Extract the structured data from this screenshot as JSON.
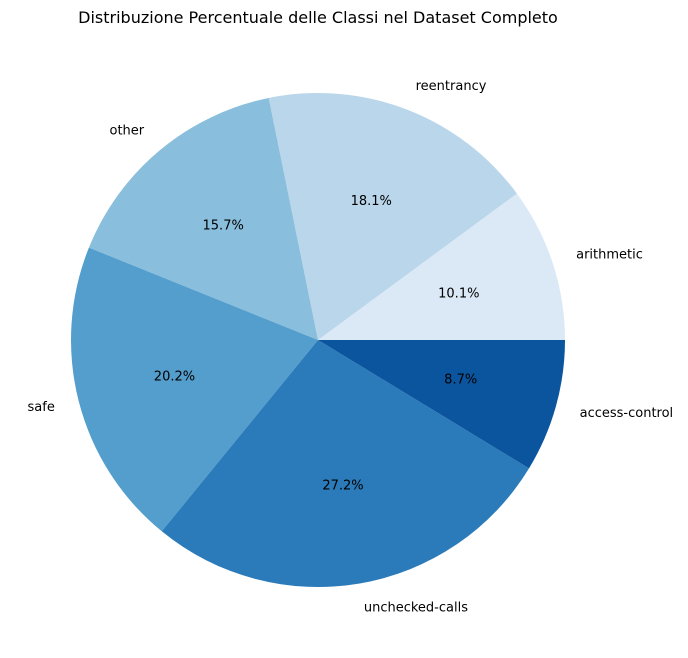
{
  "chart_data": {
    "type": "pie",
    "title": "Distribuzione Percentuale delle Classi nel Dataset Completo",
    "start_angle_deg": 0,
    "direction": "counterclockwise",
    "slices": [
      {
        "label": "arithmetic",
        "value": 10.1,
        "pct_label": "10.1%",
        "color": "#dbe9f6"
      },
      {
        "label": "reentrancy",
        "value": 18.1,
        "pct_label": "18.1%",
        "color": "#bad6eb"
      },
      {
        "label": "other",
        "value": 15.7,
        "pct_label": "15.7%",
        "color": "#89bedc"
      },
      {
        "label": "safe",
        "value": 20.2,
        "pct_label": "20.2%",
        "color": "#539ecd"
      },
      {
        "label": "unchecked-calls",
        "value": 27.2,
        "pct_label": "27.2%",
        "color": "#2b7bba"
      },
      {
        "label": "access-control",
        "value": 8.7,
        "pct_label": "8.7%",
        "color": "#0b559f"
      }
    ]
  }
}
